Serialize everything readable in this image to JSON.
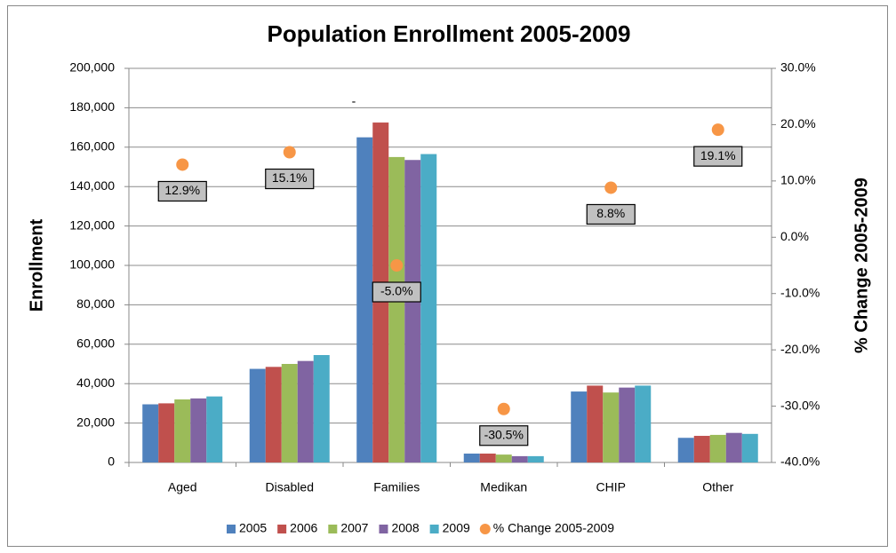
{
  "chart_data": {
    "type": "bar",
    "title": "Population Enrollment 2005-2009",
    "ylabel": "Enrollment",
    "y2label": "% Change 2005-2009",
    "annotation": "-",
    "categories": [
      "Aged",
      "Disabled",
      "Families",
      "Medikan",
      "CHIP",
      "Other"
    ],
    "series": [
      {
        "name": "2005",
        "color": "#4f81bd",
        "values": [
          29500,
          47500,
          165000,
          4500,
          36000,
          12500
        ]
      },
      {
        "name": "2006",
        "color": "#c0504d",
        "values": [
          30000,
          48500,
          172500,
          4500,
          39000,
          13500
        ]
      },
      {
        "name": "2007",
        "color": "#9bbb59",
        "values": [
          32000,
          50000,
          155000,
          4000,
          35500,
          14000
        ]
      },
      {
        "name": "2008",
        "color": "#8064a2",
        "values": [
          32500,
          51500,
          153500,
          3200,
          38000,
          15000
        ]
      },
      {
        "name": "2009",
        "color": "#4bacc6",
        "values": [
          33500,
          54500,
          156500,
          3200,
          39000,
          14500
        ]
      },
      {
        "name": "% Change 2005-2009",
        "color": "#f79646",
        "type": "scatter",
        "axis": "y2",
        "values": [
          12.9,
          15.1,
          -5.0,
          -30.5,
          8.8,
          19.1
        ],
        "value_labels": [
          "12.9%",
          "15.1%",
          "-5.0%",
          "-30.5%",
          "8.8%",
          "19.1%"
        ]
      }
    ],
    "ylim": [
      0,
      200000
    ],
    "yticks": [
      0,
      {
        "value": 20000,
        "label": "20,000"
      },
      {
        "value": 40000,
        "label": "40,000"
      },
      {
        "value": 60000,
        "label": "60,000"
      },
      {
        "value": 80000,
        "label": "80,000"
      },
      {
        "value": 100000,
        "label": "100,000"
      },
      {
        "value": 120000,
        "label": "120,000"
      },
      {
        "value": 140000,
        "label": "140,000"
      },
      {
        "value": 160000,
        "label": "160,000"
      },
      {
        "value": 180000,
        "label": "180,000"
      },
      {
        "value": 200000,
        "label": "200,000"
      }
    ],
    "y2lim": [
      -40,
      30
    ],
    "y2ticks": [
      {
        "value": -40,
        "label": "-40.0%"
      },
      {
        "value": -30,
        "label": "-30.0%"
      },
      {
        "value": -20,
        "label": "-20.0%"
      },
      {
        "value": -10,
        "label": "-10.0%"
      },
      {
        "value": 0,
        "label": "0.0%"
      },
      {
        "value": 10,
        "label": "10.0%"
      },
      {
        "value": 20,
        "label": "20.0%"
      },
      {
        "value": 30,
        "label": "30.0%"
      }
    ],
    "grid": true,
    "legend": "bottom"
  }
}
